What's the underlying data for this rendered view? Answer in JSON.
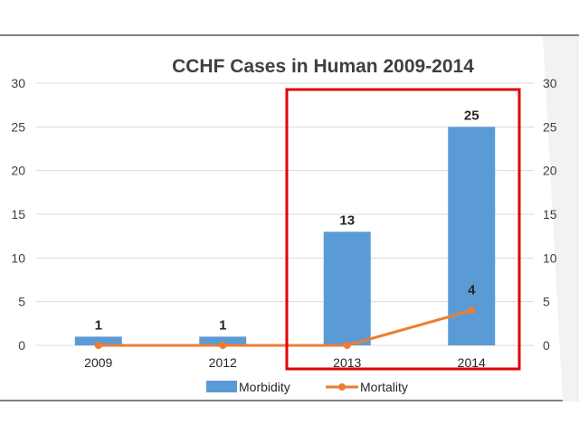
{
  "chart_data": {
    "type": "bar",
    "title": "CCHF Cases in Human 2009-2014",
    "categories": [
      "2009",
      "2012",
      "2013",
      "2014"
    ],
    "series": [
      {
        "name": "Morbidity",
        "type": "bar",
        "values": [
          1,
          1,
          13,
          25
        ],
        "data_labels": [
          "1",
          "1",
          "13",
          "25"
        ],
        "color": "#5b9bd5"
      },
      {
        "name": "Mortality",
        "type": "line",
        "values": [
          0,
          0,
          0,
          4
        ],
        "data_labels": [
          "",
          "",
          "",
          "4"
        ],
        "color": "#ed7d31"
      }
    ],
    "ylim": [
      0,
      30
    ],
    "y_ticks": [
      "0",
      "5",
      "10",
      "15",
      "20",
      "25",
      "30"
    ],
    "y2lim": [
      0,
      30
    ],
    "y2_ticks": [
      "0",
      "5",
      "10",
      "15",
      "20",
      "25",
      "30"
    ],
    "grid": true,
    "legend_position": "bottom",
    "highlight_box_color": "#e00000",
    "highlighted_categories": [
      "2013",
      "2014"
    ]
  }
}
